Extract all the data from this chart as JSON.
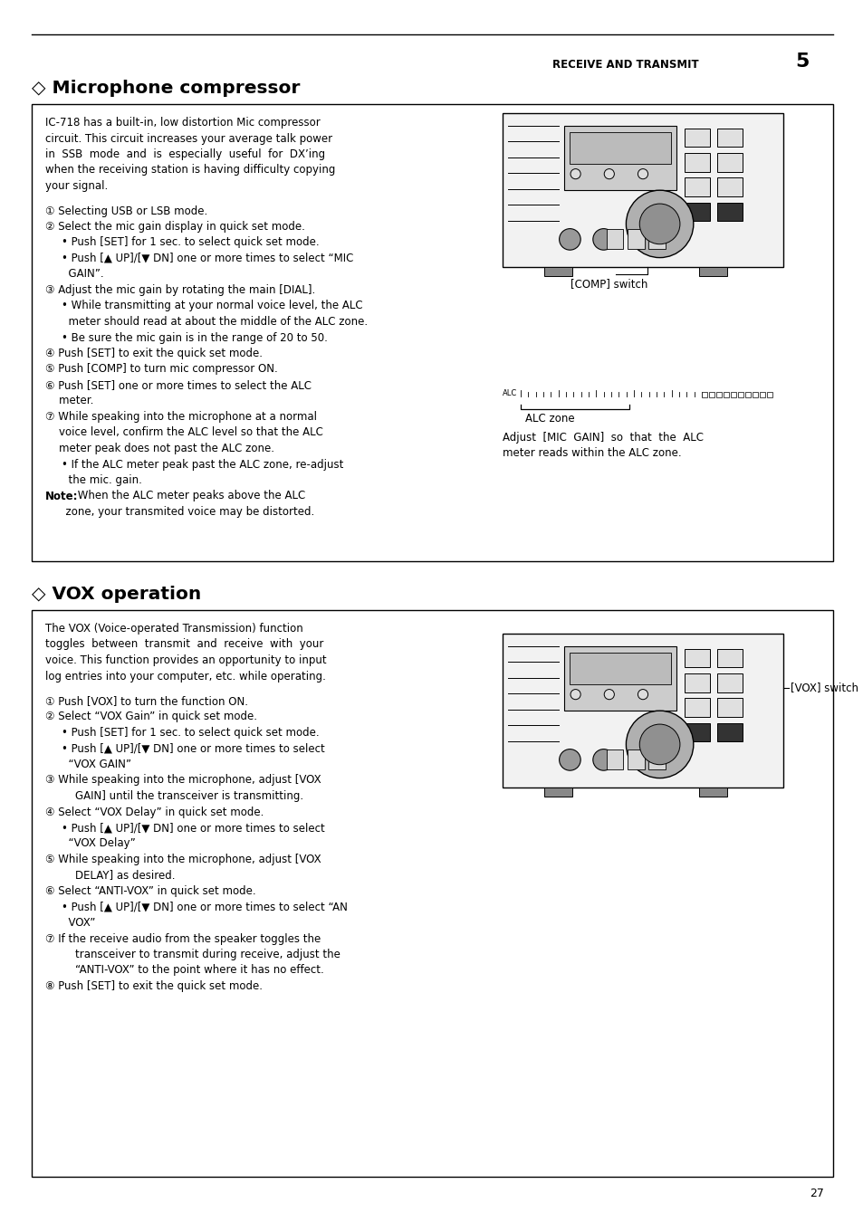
{
  "page_number": "27",
  "header_text": "RECEIVE AND TRANSMIT",
  "header_number": "5",
  "section1_title": "◇ Microphone compressor",
  "section2_title": "◇ VOX operation",
  "bg_color": "#ffffff",
  "comp_intro": [
    "IC-718 has a built-in, low distortion Mic compressor",
    "circuit. This circuit increases your average talk power",
    "in  SSB  mode  and  is  especially  useful  for  DX’ing",
    "when the receiving station is having difficulty copying",
    "your signal."
  ],
  "comp_body": [
    {
      "text": "① Selecting USB or LSB mode.",
      "bold": false,
      "indent": 0
    },
    {
      "text": "② Select the mic gain display in quick set mode.",
      "bold": false,
      "indent": 0
    },
    {
      "text": "• Push [SET] for 1 sec. to select quick set mode.",
      "bold": false,
      "indent": 1
    },
    {
      "text": "• Push [▲ UP]/[▼ DN] one or more times to select “MIC",
      "bold": false,
      "indent": 1
    },
    {
      "text": "  GAIN”.",
      "bold": false,
      "indent": 1
    },
    {
      "text": "③ Adjust the mic gain by rotating the main [DIAL].",
      "bold": false,
      "indent": 0
    },
    {
      "text": "• While transmitting at your normal voice level, the ALC",
      "bold": false,
      "indent": 1
    },
    {
      "text": "  meter should read at about the middle of the ALC zone.",
      "bold": false,
      "indent": 1
    },
    {
      "text": "• Be sure the mic gain is in the range of 20 to 50.",
      "bold": false,
      "indent": 1
    },
    {
      "text": "④ Push [SET] to exit the quick set mode.",
      "bold": false,
      "indent": 0
    },
    {
      "text": "⑤ Push [COMP] to turn mic compressor ON.",
      "bold": false,
      "indent": 0
    },
    {
      "text": "⑥ Push [SET] one or more times to select the ALC",
      "bold": false,
      "indent": 0
    },
    {
      "text": "    meter.",
      "bold": false,
      "indent": 0
    },
    {
      "text": "⑦ While speaking into the microphone at a normal",
      "bold": false,
      "indent": 0
    },
    {
      "text": "    voice level, confirm the ALC level so that the ALC",
      "bold": false,
      "indent": 0
    },
    {
      "text": "    meter peak does not past the ALC zone.",
      "bold": false,
      "indent": 0
    },
    {
      "text": "• If the ALC meter peak past the ALC zone, re-adjust",
      "bold": false,
      "indent": 1
    },
    {
      "text": "  the mic. gain.",
      "bold": false,
      "indent": 1
    },
    {
      "text": "Note: When the ALC meter peaks above the ALC",
      "bold": true,
      "indent": 0
    },
    {
      "text": "      zone, your transmited voice may be distorted.",
      "bold": false,
      "indent": 0
    }
  ],
  "vox_intro": [
    "The VOX (Voice-operated Transmission) function",
    "toggles  between  transmit  and  receive  with  your",
    "voice. This function provides an opportunity to input",
    "log entries into your computer, etc. while operating."
  ],
  "vox_body": [
    {
      "text": "① Push [VOX] to turn the function ON.",
      "bold": false
    },
    {
      "text": "② Select “VOX Gain” in quick set mode.",
      "bold": false
    },
    {
      "text": "• Push [SET] for 1 sec. to select quick set mode.",
      "bold": false
    },
    {
      "text": "• Push [▲ UP]/[▼ DN] one or more times to select",
      "bold": false
    },
    {
      "text": "  “VOX GAIN”",
      "bold": false
    },
    {
      "text": "③ While speaking into the microphone, adjust [VOX",
      "bold": false
    },
    {
      "text": "    GAIN] until the transceiver is transmitting.",
      "bold": false
    },
    {
      "text": "④ Select “VOX Delay” in quick set mode.",
      "bold": false
    },
    {
      "text": "• Push [▲ UP]/[▼ DN] one or more times to select",
      "bold": false
    },
    {
      "text": "  “VOX Delay”",
      "bold": false
    },
    {
      "text": "⑤ While speaking into the microphone, adjust [VOX",
      "bold": false
    },
    {
      "text": "    DELAY] as desired.",
      "bold": false
    },
    {
      "text": "⑥ Select “ANTI-VOX” in quick set mode.",
      "bold": false
    },
    {
      "text": "• Push [▲ UP]/[▼ DN] one or more times to select “AN",
      "bold": false
    },
    {
      "text": "  VOX”",
      "bold": false
    },
    {
      "text": "⑦ If the receive audio from the speaker toggles the",
      "bold": false
    },
    {
      "text": "    transceiver to transmit during receive, adjust the",
      "bold": false
    },
    {
      "text": "    “ANTI-VOX” to the point where it has no effect.",
      "bold": false
    },
    {
      "text": "⑧ Push [SET] to exit the quick set mode.",
      "bold": false
    }
  ],
  "comp_label": "[COMP] switch",
  "alc_label": "ALC zone",
  "alc_adjust_line1": "Adjust  [MIC  GAIN]  so  that  the  ALC",
  "alc_adjust_line2": "meter reads within the ALC zone.",
  "vox_label": "[VOX] switch"
}
